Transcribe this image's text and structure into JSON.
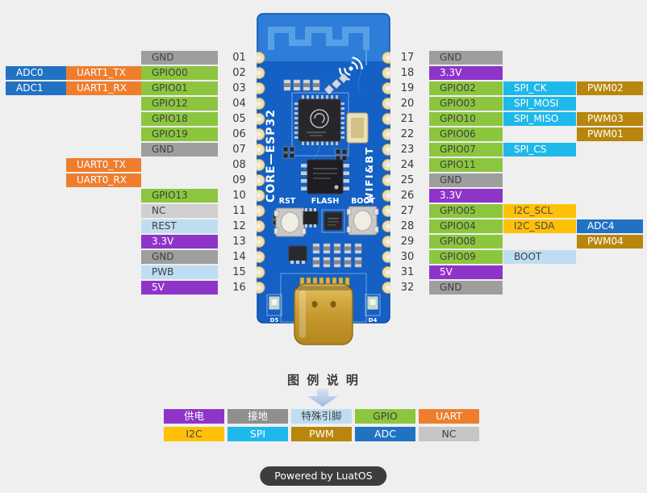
{
  "page": {
    "background": "#EFEFEF"
  },
  "colors": {
    "power": {
      "bg": "#8E34C9",
      "fg": "#FFFFFF"
    },
    "gnd": {
      "bg": "#9E9E9E",
      "fg": "#3F3F3F"
    },
    "special": {
      "bg": "#BFDDF2",
      "fg": "#3F3F3F"
    },
    "gpio": {
      "bg": "#8CC63F",
      "fg": "#3F3F3F"
    },
    "uart": {
      "bg": "#EE7E2E",
      "fg": "#FFFFFF"
    },
    "i2c": {
      "bg": "#FFC107",
      "fg": "#4A4A4A"
    },
    "spi": {
      "bg": "#1FB8EA",
      "fg": "#FFFFFF"
    },
    "pwm": {
      "bg": "#B8860B",
      "fg": "#FFFFFF"
    },
    "adc": {
      "bg": "#2272C3",
      "fg": "#FFFFFF"
    },
    "nc": {
      "bg": "#CFCFCF",
      "fg": "#3F3F3F"
    },
    "legend_gnd": {
      "bg": "#8F8F8F",
      "fg": "#FFFFFF"
    },
    "legend_nc": {
      "bg": "#C6C6C6",
      "fg": "#3F3F3F"
    }
  },
  "pins": {
    "left": [
      {
        "num": "01",
        "main": {
          "label": "GND",
          "type": "gnd"
        }
      },
      {
        "num": "02",
        "main": {
          "label": "GPIO00",
          "type": "gpio"
        },
        "mid": {
          "label": "UART1_TX",
          "type": "uart"
        },
        "outer": {
          "label": "ADC0",
          "type": "adc"
        }
      },
      {
        "num": "03",
        "main": {
          "label": "GPIO01",
          "type": "gpio"
        },
        "mid": {
          "label": "UART1_RX",
          "type": "uart"
        },
        "outer": {
          "label": "ADC1",
          "type": "adc"
        }
      },
      {
        "num": "04",
        "main": {
          "label": "GPIO12",
          "type": "gpio"
        }
      },
      {
        "num": "05",
        "main": {
          "label": "GPIO18",
          "type": "gpio"
        }
      },
      {
        "num": "06",
        "main": {
          "label": "GPIO19",
          "type": "gpio"
        }
      },
      {
        "num": "07",
        "main": {
          "label": "GND",
          "type": "gnd"
        }
      },
      {
        "num": "08",
        "mid": {
          "label": "UART0_TX",
          "type": "uart"
        }
      },
      {
        "num": "09",
        "mid": {
          "label": "UART0_RX",
          "type": "uart"
        }
      },
      {
        "num": "10",
        "main": {
          "label": "GPIO13",
          "type": "gpio"
        }
      },
      {
        "num": "11",
        "main": {
          "label": "NC",
          "type": "nc"
        }
      },
      {
        "num": "12",
        "main": {
          "label": "REST",
          "type": "special"
        }
      },
      {
        "num": "13",
        "main": {
          "label": "3.3V",
          "type": "power"
        }
      },
      {
        "num": "14",
        "main": {
          "label": "GND",
          "type": "gnd"
        }
      },
      {
        "num": "15",
        "main": {
          "label": "PWB",
          "type": "special"
        }
      },
      {
        "num": "16",
        "main": {
          "label": "5V",
          "type": "power"
        }
      }
    ],
    "right": [
      {
        "num": "17",
        "main": {
          "label": "GND",
          "type": "gnd"
        }
      },
      {
        "num": "18",
        "main": {
          "label": "3.3V",
          "type": "power"
        }
      },
      {
        "num": "19",
        "main": {
          "label": "GPIO02",
          "type": "gpio"
        },
        "mid": {
          "label": "SPI_CK",
          "type": "spi"
        },
        "outer": {
          "label": "PWM02",
          "type": "pwm"
        }
      },
      {
        "num": "20",
        "main": {
          "label": "GPIO03",
          "type": "gpio"
        },
        "mid": {
          "label": "SPI_MOSI",
          "type": "spi"
        }
      },
      {
        "num": "21",
        "main": {
          "label": "GPIO10",
          "type": "gpio"
        },
        "mid": {
          "label": "SPI_MISO",
          "type": "spi"
        },
        "outer": {
          "label": "PWM03",
          "type": "pwm"
        }
      },
      {
        "num": "22",
        "main": {
          "label": "GPIO06",
          "type": "gpio"
        },
        "outer": {
          "label": "PWM01",
          "type": "pwm"
        }
      },
      {
        "num": "23",
        "main": {
          "label": "GPIO07",
          "type": "gpio"
        },
        "mid": {
          "label": "SPI_CS",
          "type": "spi"
        }
      },
      {
        "num": "24",
        "main": {
          "label": "GPIO11",
          "type": "gpio"
        }
      },
      {
        "num": "25",
        "main": {
          "label": "GND",
          "type": "gnd"
        }
      },
      {
        "num": "26",
        "main": {
          "label": "3.3V",
          "type": "power"
        }
      },
      {
        "num": "27",
        "main": {
          "label": "GPIO05",
          "type": "gpio"
        },
        "mid": {
          "label": "I2C_SCL",
          "type": "i2c"
        }
      },
      {
        "num": "28",
        "main": {
          "label": "GPIO04",
          "type": "gpio"
        },
        "mid": {
          "label": "I2C_SDA",
          "type": "i2c"
        },
        "outer": {
          "label": "ADC4",
          "type": "adc"
        }
      },
      {
        "num": "29",
        "main": {
          "label": "GPIO08",
          "type": "gpio"
        },
        "outer": {
          "label": "PWM04",
          "type": "pwm"
        }
      },
      {
        "num": "30",
        "main": {
          "label": "GPIO09",
          "type": "gpio"
        },
        "mid": {
          "label": "BOOT",
          "type": "special"
        }
      },
      {
        "num": "31",
        "main": {
          "label": "5V",
          "type": "power"
        }
      },
      {
        "num": "32",
        "main": {
          "label": "GND",
          "type": "gnd"
        }
      }
    ]
  },
  "board": {
    "pcb_color": "#1460C4",
    "title_vertical": "CORE—ESP32",
    "wireless_label": "WIFI&BT",
    "rst_label": "RST",
    "flash_label": "FLASH",
    "boot_label": "BOOT",
    "led_left": "D5",
    "led_right": "D4"
  },
  "legend": {
    "title": "图 例 说 明",
    "rows": [
      [
        {
          "label": "供电",
          "type": "power"
        },
        {
          "label": "接地",
          "type": "legend_gnd"
        },
        {
          "label": "特殊引脚",
          "type": "special"
        },
        {
          "label": "GPIO",
          "type": "gpio"
        },
        {
          "label": "UART",
          "type": "uart"
        }
      ],
      [
        {
          "label": "I2C",
          "type": "i2c"
        },
        {
          "label": "SPI",
          "type": "spi"
        },
        {
          "label": "PWM",
          "type": "pwm"
        },
        {
          "label": "ADC",
          "type": "adc"
        },
        {
          "label": "NC",
          "type": "legend_nc"
        }
      ]
    ]
  },
  "footer": {
    "label": "Powered by LuatOS"
  }
}
